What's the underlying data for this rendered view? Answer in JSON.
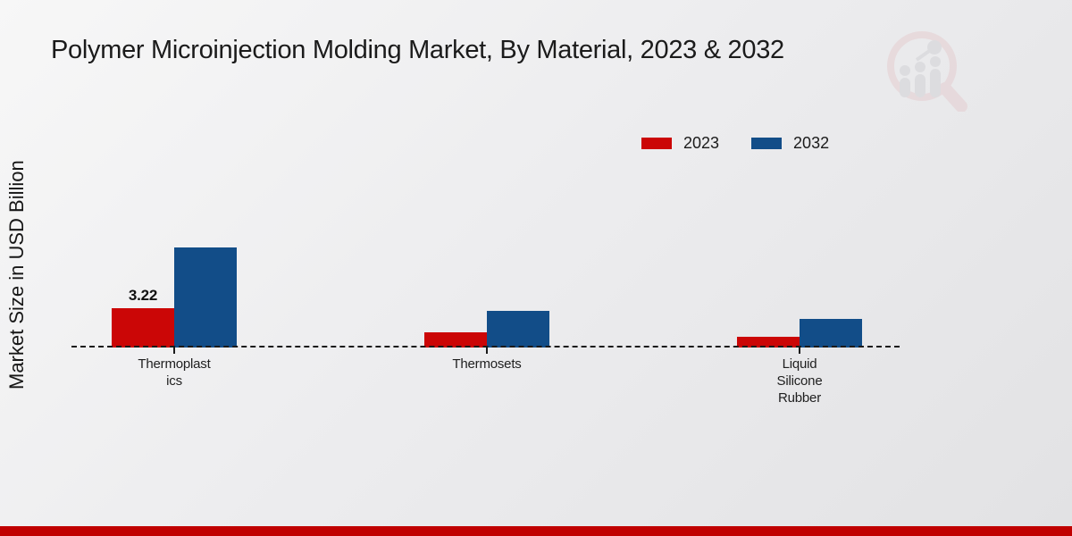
{
  "title": "Polymer Microinjection Molding Market, By Material, 2023 & 2032",
  "ylabel": "Market Size in USD Billion",
  "legend": {
    "items": [
      {
        "label": "2023",
        "color": "#cb0606"
      },
      {
        "label": "2032",
        "color": "#124d88"
      }
    ]
  },
  "chart_data": {
    "type": "bar",
    "title": "Polymer Microinjection Molding Market, By Material, 2023 & 2032",
    "xlabel": "",
    "ylabel": "Market Size in USD Billion",
    "categories": [
      "Thermoplastics",
      "Thermosets",
      "Liquid Silicone Rubber"
    ],
    "category_label_lines": [
      [
        "Thermoplast",
        "ics"
      ],
      [
        "Thermosets"
      ],
      [
        "Liquid",
        "Silicone",
        "Rubber"
      ]
    ],
    "series": [
      {
        "name": "2023",
        "color": "#cb0606",
        "values": [
          3.22,
          1.25,
          0.9
        ]
      },
      {
        "name": "2032",
        "color": "#124d88",
        "values": [
          8.2,
          3.0,
          2.35
        ]
      }
    ],
    "data_labels": [
      {
        "series": 0,
        "category": 0,
        "text": "3.22"
      }
    ],
    "ylim": [
      0,
      10
    ],
    "grid": false,
    "legend_position": "top-right",
    "baseline_style": "dashed",
    "y_tick_labels_visible": false
  },
  "footer": {
    "color": "#c00000"
  },
  "watermark": {
    "name": "magnifier-bar-chart-logo",
    "circle_color": "#e5cdd0",
    "bars_color": "#d2d2d6"
  }
}
